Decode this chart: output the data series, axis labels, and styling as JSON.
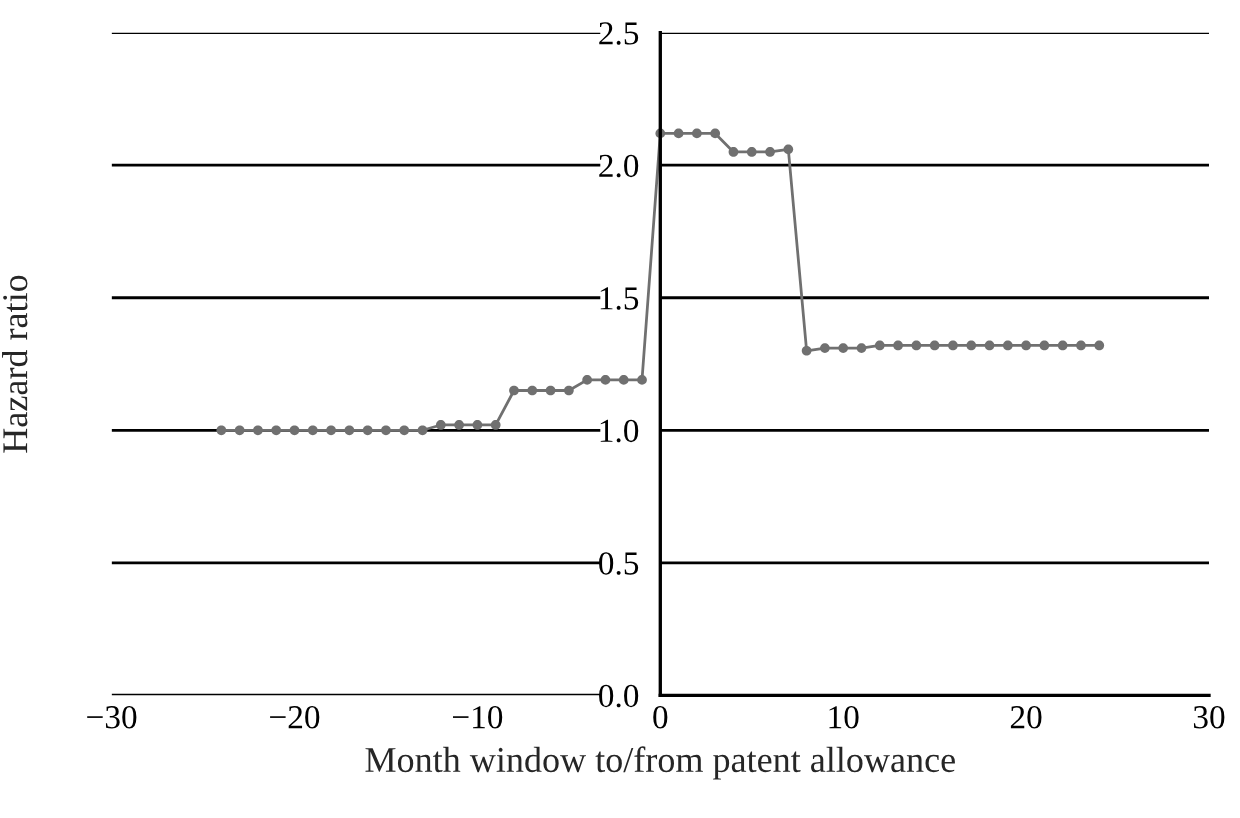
{
  "chart_data": {
    "type": "line",
    "xlabel": "Month window to/from patent allowance",
    "ylabel": "Hazard ratio",
    "x": [
      -24,
      -23,
      -22,
      -21,
      -20,
      -19,
      -18,
      -17,
      -16,
      -15,
      -14,
      -13,
      -12,
      -11,
      -10,
      -9,
      -8,
      -7,
      -6,
      -5,
      -4,
      -3,
      -2,
      -1,
      0,
      1,
      2,
      3,
      4,
      5,
      6,
      7,
      8,
      9,
      10,
      11,
      12,
      13,
      14,
      15,
      16,
      17,
      18,
      19,
      20,
      21,
      22,
      23,
      24
    ],
    "series": [
      {
        "color": "#707070",
        "values": [
          1.0,
          1.0,
          1.0,
          1.0,
          1.0,
          1.0,
          1.0,
          1.0,
          1.0,
          1.0,
          1.0,
          1.0,
          1.02,
          1.02,
          1.02,
          1.02,
          1.15,
          1.15,
          1.15,
          1.15,
          1.19,
          1.19,
          1.19,
          1.19,
          2.12,
          2.12,
          2.12,
          2.12,
          2.05,
          2.05,
          2.05,
          2.06,
          1.3,
          1.31,
          1.31,
          1.31,
          1.32,
          1.32,
          1.32,
          1.32,
          1.32,
          1.32,
          1.32,
          1.32,
          1.32,
          1.32,
          1.32,
          1.32,
          1.32
        ]
      }
    ],
    "xlim": [
      -30,
      30
    ],
    "ylim": [
      0,
      2.5
    ],
    "xticks": [
      -30,
      -20,
      -10,
      0,
      10,
      20,
      30
    ],
    "yticks": [
      {
        "value": 0,
        "label": "0.0"
      },
      0.5,
      {
        "value": 1,
        "label": "1.0"
      },
      1.5,
      {
        "value": 2,
        "label": "2.0"
      },
      2.5
    ],
    "grid": "y",
    "marker": "circle",
    "line_style": "solid"
  }
}
